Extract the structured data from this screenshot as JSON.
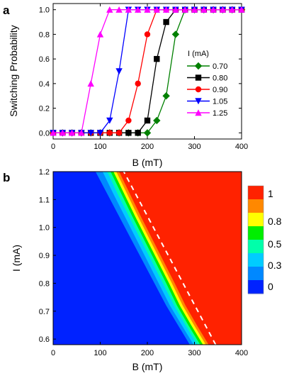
{
  "chart_data": [
    {
      "panel": "a",
      "type": "line",
      "xlabel": "B (mT)",
      "ylabel": "Switching Probability",
      "xlim": [
        0,
        400
      ],
      "ylim": [
        -0.05,
        1.05
      ],
      "x_ticks": [
        "0",
        "100",
        "200",
        "300",
        "400"
      ],
      "y_ticks": [
        "0.0",
        "0.2",
        "0.4",
        "0.6",
        "0.8",
        "1.0"
      ],
      "legend_title": "I (mA)",
      "legend_position": "right",
      "x": [
        0,
        20,
        40,
        60,
        80,
        100,
        120,
        140,
        160,
        180,
        200,
        220,
        240,
        260,
        280,
        300,
        320,
        340,
        360,
        380,
        400
      ],
      "series": [
        {
          "name": "0.70",
          "color": "#008000",
          "marker": "diamond",
          "values": [
            0,
            0,
            0,
            0,
            0,
            0,
            0,
            0,
            0,
            0,
            0,
            0.1,
            0.3,
            0.8,
            1,
            1,
            1,
            1,
            1,
            1,
            1
          ]
        },
        {
          "name": "0.80",
          "color": "#000000",
          "marker": "square",
          "values": [
            0,
            0,
            0,
            0,
            0,
            0,
            0,
            0,
            0,
            0,
            0.1,
            0.6,
            0.9,
            1,
            1,
            1,
            1,
            1,
            1,
            1,
            1
          ]
        },
        {
          "name": "0.90",
          "color": "#ff0000",
          "marker": "circle",
          "values": [
            0,
            0,
            0,
            0,
            0,
            0,
            0,
            0,
            0.1,
            0.4,
            0.8,
            1,
            1,
            1,
            1,
            1,
            1,
            1,
            1,
            1,
            1
          ]
        },
        {
          "name": "1.05",
          "color": "#0000ff",
          "marker": "triangle-down",
          "values": [
            0,
            0,
            0,
            0,
            0,
            0,
            0.1,
            0.5,
            1,
            1,
            1,
            1,
            1,
            1,
            1,
            1,
            1,
            1,
            1,
            1,
            1
          ]
        },
        {
          "name": "1.25",
          "color": "#ff00ff",
          "marker": "triangle-up",
          "values": [
            0,
            0,
            0,
            0,
            0.4,
            0.8,
            1,
            1,
            1,
            1,
            1,
            1,
            1,
            1,
            1,
            1,
            1,
            1,
            1,
            1,
            1
          ]
        }
      ]
    },
    {
      "panel": "b",
      "type": "heatmap",
      "xlabel": "B (mT)",
      "ylabel": "I (mA)",
      "xlim": [
        0,
        400
      ],
      "ylim": [
        0.58,
        1.2
      ],
      "x_ticks": [
        "0",
        "100",
        "200",
        "300",
        "400"
      ],
      "y_ticks": [
        "0.6",
        "0.7",
        "0.8",
        "0.9",
        "1.0",
        "1.1",
        "1.2"
      ],
      "colorbar": {
        "labels": [
          "1",
          "0.8",
          "0.5",
          "0.3",
          "0"
        ],
        "colors": [
          "#ff2200",
          "#ff8800",
          "#ffff00",
          "#00ee00",
          "#00ffaa",
          "#00ccff",
          "#0088ff",
          "#0022ff"
        ]
      },
      "boundary_I": [
        0.58,
        0.65,
        0.72,
        0.8,
        0.88,
        0.96,
        1.04,
        1.12,
        1.2
      ],
      "boundary_B": [
        [
          290,
          265,
          240,
          215,
          190,
          165,
          140,
          115,
          90
        ],
        [
          298,
          273,
          248,
          224,
          200,
          176,
          152,
          128,
          105
        ],
        [
          306,
          281,
          257,
          233,
          209,
          185,
          161,
          137,
          115
        ],
        [
          312,
          287,
          263,
          240,
          216,
          192,
          168,
          145,
          122
        ],
        [
          318,
          293,
          269,
          246,
          222,
          198,
          174,
          151,
          128
        ],
        [
          324,
          299,
          275,
          252,
          228,
          204,
          180,
          157,
          134
        ],
        [
          330,
          305,
          281,
          258,
          234,
          210,
          186,
          163,
          140
        ]
      ],
      "dashed_line": {
        "B": [
          345,
          150
        ],
        "I": [
          0.58,
          1.2
        ]
      }
    }
  ],
  "labels": {
    "panel_a": "a",
    "panel_b": "b"
  }
}
